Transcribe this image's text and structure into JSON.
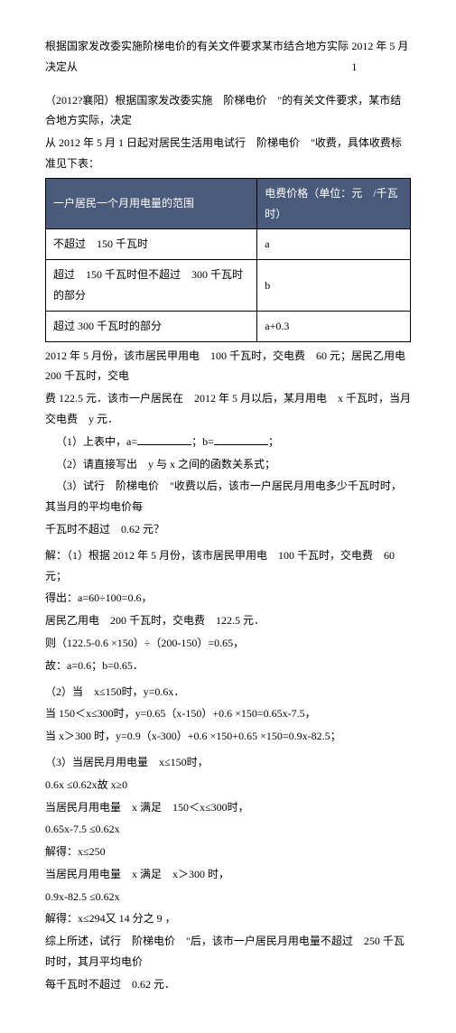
{
  "header": {
    "left": "根据国家发改委实施阶梯电价的有关文件要求某市结合地方实际决定从",
    "right": "2012 年 5 月 1"
  },
  "intro": {
    "l1": "（2012?襄阳）根据国家发改委实施　阶梯电价　\"的有关文件要求，某市结合地方实际，决定",
    "l2": "从 2012 年 5 月 1 日起对居民生活用电试行　阶梯电价　\"收费，具体收费标准见下表："
  },
  "table": {
    "h1": "一户居民一个月用电量的范围",
    "h2": "电费价格（单位：元　/千瓦时）",
    "r1c1": "不超过　150 千瓦时",
    "r1c2": "a",
    "r2c1": "超过　150 千瓦时但不超过　300 千瓦时的部分",
    "r2c2": "b",
    "r3c1": "超过 300 千瓦时的部分",
    "r3c2": "a+0.3"
  },
  "body1": {
    "l1": "2012 年 5 月份，该市居民甲用电　100 千瓦时，交电费　60 元；居民乙用电　200 千瓦时，交电",
    "l2": "费 122.5 元．该市一户居民在　2012 年 5 月以后，某月用电　x 千瓦时，当月交电费　y 元．",
    "q1a": "（1）上表中，a=",
    "q1b": "；b=",
    "q1c": "；",
    "q2": "（2）请直接写出　y 与 x 之间的函数关系式；",
    "q3a": "（3）试行　阶梯电价　\"收费以后，该市一户居民月用电多少千瓦时时，其当月的平均电价每",
    "q3b": "千瓦时不超过　0.62 元？"
  },
  "ans1": {
    "l1": "解：（1）根据 2012 年 5 月份，该市居民甲用电　100 千瓦时，交电费　60 元；",
    "l2": "得出：a=60÷100=0.6，",
    "l3": "居民乙用电　200 千瓦时，交电费　122.5 元．",
    "l4": "则（122.5-0.6 ×150）÷（200-150）=0.65，",
    "l5": "故：a=0.6；b=0.65．"
  },
  "ans2": {
    "l1": "（2）当　x≤150时，y=0.6x．",
    "l2": "当 150＜x≤300时，y=0.65（x-150）+0.6 ×150=0.65x-7.5，",
    "l3": "当 x＞300 时，y=0.9（x-300）+0.6 ×150+0.65 ×150=0.9x-82.5；"
  },
  "ans3": {
    "l1": "（3）当居民月用电量　x≤150时，",
    "l2": "0.6x ≤0.62x故 x≥0",
    "l3": "当居民月用电量　x 满足　150＜x≤300时，",
    "l4": "0.65x-7.5 ≤0.62x",
    "l5": "解得：x≤250",
    "l6": "当居民月用电量　x 满足　x＞300 时，",
    "l7": "0.9x-82.5 ≤0.62x",
    "l8": "解得：x≤294又 14 分之 9 ，",
    "l9": "综上所述，试行　阶梯电价　\"后，该市一户居民月用电量不超过　250 千瓦时时，其月平均电价",
    "l10": "每千瓦时不超过　0.62 元．"
  }
}
